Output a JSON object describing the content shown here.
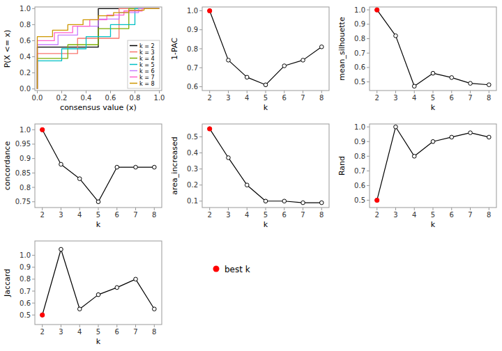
{
  "chart_data": [
    {
      "type": "step",
      "xlabel": "consensus value (x)",
      "ylabel": "P(X <= x)",
      "xlim": [
        -0.02,
        1.02
      ],
      "ylim": [
        -0.02,
        1.02
      ],
      "xticks": [
        {
          "value": 0,
          "label": "0.0"
        },
        0.2,
        0.4,
        0.6,
        0.8,
        {
          "value": 1,
          "label": "1.0"
        }
      ],
      "yticks": [
        {
          "value": 0,
          "label": "0.0"
        },
        0.2,
        0.4,
        0.6,
        0.8,
        {
          "value": 1,
          "label": "1.0"
        }
      ],
      "grid": false,
      "legend": "lower right",
      "series": [
        {
          "name": "k = 2",
          "color": "#000000",
          "x": [
            0.0,
            0.0,
            0.5,
            0.5,
            1.0,
            1.0
          ],
          "values": [
            0.0,
            0.52,
            0.52,
            1.0,
            1.0,
            1.0
          ]
        },
        {
          "name": "k = 3",
          "color": "#F8766D",
          "x": [
            0.0,
            0.0,
            0.33,
            0.33,
            0.67,
            0.67,
            1.0,
            1.0
          ],
          "values": [
            0.0,
            0.44,
            0.44,
            0.63,
            0.63,
            1.0,
            1.0,
            1.0
          ]
        },
        {
          "name": "k = 4",
          "color": "#7CAE00",
          "x": [
            0.0,
            0.0,
            0.25,
            0.25,
            0.5,
            0.5,
            0.75,
            0.75,
            1.0,
            1.0
          ],
          "values": [
            0.0,
            0.38,
            0.38,
            0.55,
            0.55,
            0.75,
            0.75,
            1.0,
            1.0,
            1.0
          ]
        },
        {
          "name": "k = 5",
          "color": "#00BFC4",
          "x": [
            0.0,
            0.0,
            0.2,
            0.2,
            0.4,
            0.4,
            0.6,
            0.6,
            0.8,
            0.8,
            1.0,
            1.0
          ],
          "values": [
            0.0,
            0.35,
            0.35,
            0.5,
            0.5,
            0.65,
            0.65,
            0.8,
            0.8,
            1.0,
            1.0,
            1.0
          ]
        },
        {
          "name": "k = 6",
          "color": "#C77CFF",
          "x": [
            0.0,
            0.0,
            0.17,
            0.17,
            0.33,
            0.33,
            0.5,
            0.5,
            0.67,
            0.67,
            0.83,
            0.83,
            1.0,
            1.0
          ],
          "values": [
            0.0,
            0.55,
            0.55,
            0.67,
            0.67,
            0.78,
            0.78,
            0.87,
            0.87,
            0.95,
            0.95,
            1.0,
            1.0,
            1.0
          ]
        },
        {
          "name": "k = 7",
          "color": "#FF61CC",
          "x": [
            0.0,
            0.0,
            0.14,
            0.14,
            0.29,
            0.29,
            0.43,
            0.43,
            0.57,
            0.57,
            0.71,
            0.71,
            0.86,
            0.86,
            1.0,
            1.0
          ],
          "values": [
            0.0,
            0.6,
            0.6,
            0.7,
            0.7,
            0.78,
            0.78,
            0.86,
            0.86,
            0.92,
            0.92,
            0.97,
            0.97,
            1.0,
            1.0,
            1.0
          ]
        },
        {
          "name": "k = 8",
          "color": "#CD9600",
          "x": [
            0.0,
            0.0,
            0.125,
            0.125,
            0.25,
            0.25,
            0.375,
            0.375,
            0.5,
            0.5,
            0.625,
            0.625,
            0.75,
            0.75,
            0.875,
            0.875,
            1.0,
            1.0
          ],
          "values": [
            0.0,
            0.65,
            0.65,
            0.73,
            0.73,
            0.8,
            0.8,
            0.86,
            0.86,
            0.91,
            0.91,
            0.95,
            0.95,
            0.98,
            0.98,
            1.0,
            1.0,
            1.0
          ]
        }
      ]
    },
    {
      "type": "line",
      "xlabel": "k",
      "ylabel": "1-PAC",
      "x": [
        2,
        3,
        4,
        5,
        6,
        7,
        8
      ],
      "xlim": [
        1.6,
        8.4
      ],
      "xticks": [
        2,
        3,
        4,
        5,
        6,
        7,
        8
      ],
      "ylim": [
        0.58,
        1.02
      ],
      "yticks": [
        0.6,
        0.7,
        0.8,
        0.9,
        {
          "value": 1.0,
          "label": "1.0"
        }
      ],
      "grid": false,
      "series": [
        {
          "color": "#000000",
          "marker": "circle",
          "values": [
            1.0,
            0.74,
            0.65,
            0.61,
            0.71,
            0.74,
            0.81
          ]
        },
        {
          "name": "best k",
          "type": "scatter",
          "color": "red",
          "marker": "circle",
          "values": [
            1.0,
            null,
            null,
            null,
            null,
            null,
            null
          ]
        }
      ]
    },
    {
      "type": "line",
      "xlabel": "k",
      "ylabel": "mean_silhouette",
      "x": [
        2,
        3,
        4,
        5,
        6,
        7,
        8
      ],
      "xlim": [
        1.6,
        8.4
      ],
      "xticks": [
        2,
        3,
        4,
        5,
        6,
        7,
        8
      ],
      "ylim": [
        0.44,
        1.02
      ],
      "yticks": [
        0.5,
        0.6,
        0.7,
        0.8,
        0.9,
        {
          "value": 1.0,
          "label": "1.0"
        }
      ],
      "grid": false,
      "series": [
        {
          "color": "#000000",
          "marker": "circle",
          "values": [
            1.0,
            0.82,
            0.47,
            0.56,
            0.53,
            0.49,
            0.48
          ]
        },
        {
          "type": "scatter",
          "color": "red",
          "marker": "circle",
          "values": [
            1.0,
            null,
            null,
            null,
            null,
            null,
            null
          ]
        }
      ]
    },
    {
      "type": "line",
      "xlabel": "k",
      "ylabel": "concordance",
      "x": [
        2,
        3,
        4,
        5,
        6,
        7,
        8
      ],
      "xlim": [
        1.6,
        8.4
      ],
      "xticks": [
        2,
        3,
        4,
        5,
        6,
        7,
        8
      ],
      "ylim": [
        0.73,
        1.02
      ],
      "yticks": [
        0.75,
        0.8,
        0.85,
        0.9,
        0.95,
        {
          "value": 1.0,
          "label": "1.0"
        }
      ],
      "grid": false,
      "series": [
        {
          "color": "#000000",
          "marker": "circle",
          "values": [
            1.0,
            0.88,
            0.83,
            0.75,
            0.87,
            0.87,
            0.87
          ]
        },
        {
          "type": "scatter",
          "color": "red",
          "marker": "circle",
          "values": [
            1.0,
            null,
            null,
            null,
            null,
            null,
            null
          ]
        }
      ]
    },
    {
      "type": "line",
      "xlabel": "k",
      "ylabel": "area_increased",
      "x": [
        2,
        3,
        4,
        5,
        6,
        7,
        8
      ],
      "xlim": [
        1.6,
        8.4
      ],
      "xticks": [
        2,
        3,
        4,
        5,
        6,
        7,
        8
      ],
      "ylim": [
        0.06,
        0.58
      ],
      "yticks": [
        0.1,
        0.2,
        0.3,
        0.4,
        0.5
      ],
      "grid": false,
      "series": [
        {
          "color": "#000000",
          "marker": "circle",
          "values": [
            0.55,
            0.37,
            0.2,
            0.1,
            0.1,
            0.09,
            0.09
          ]
        },
        {
          "type": "scatter",
          "color": "red",
          "marker": "circle",
          "values": [
            0.55,
            null,
            null,
            null,
            null,
            null,
            null
          ]
        }
      ]
    },
    {
      "type": "line",
      "xlabel": "k",
      "ylabel": "Rand",
      "x": [
        2,
        3,
        4,
        5,
        6,
        7,
        8
      ],
      "xlim": [
        1.6,
        8.4
      ],
      "xticks": [
        2,
        3,
        4,
        5,
        6,
        7,
        8
      ],
      "ylim": [
        0.45,
        1.02
      ],
      "yticks": [
        0.5,
        0.6,
        0.7,
        0.8,
        0.9,
        {
          "value": 1.0,
          "label": "1.0"
        }
      ],
      "grid": false,
      "series": [
        {
          "color": "#000000",
          "marker": "circle",
          "values": [
            0.5,
            1.0,
            0.8,
            0.9,
            0.93,
            0.96,
            0.93
          ]
        },
        {
          "type": "scatter",
          "color": "red",
          "marker": "circle",
          "values": [
            0.5,
            null,
            null,
            null,
            null,
            null,
            null
          ]
        }
      ]
    },
    {
      "type": "line",
      "xlabel": "k",
      "ylabel": "Jaccard",
      "x": [
        2,
        3,
        4,
        5,
        6,
        7,
        8
      ],
      "xlim": [
        1.6,
        8.4
      ],
      "xticks": [
        2,
        3,
        4,
        5,
        6,
        7,
        8
      ],
      "ylim": [
        0.42,
        1.12
      ],
      "yticks": [
        0.5,
        0.6,
        0.7,
        0.8,
        0.9,
        {
          "value": 1.0,
          "label": "1.0"
        }
      ],
      "grid": false,
      "series": [
        {
          "color": "#000000",
          "marker": "circle",
          "values": [
            0.5,
            1.05,
            0.55,
            0.67,
            0.73,
            0.8,
            0.55
          ]
        },
        {
          "type": "scatter",
          "color": "red",
          "marker": "circle",
          "values": [
            0.5,
            null,
            null,
            null,
            null,
            null,
            null
          ]
        }
      ]
    }
  ]
}
